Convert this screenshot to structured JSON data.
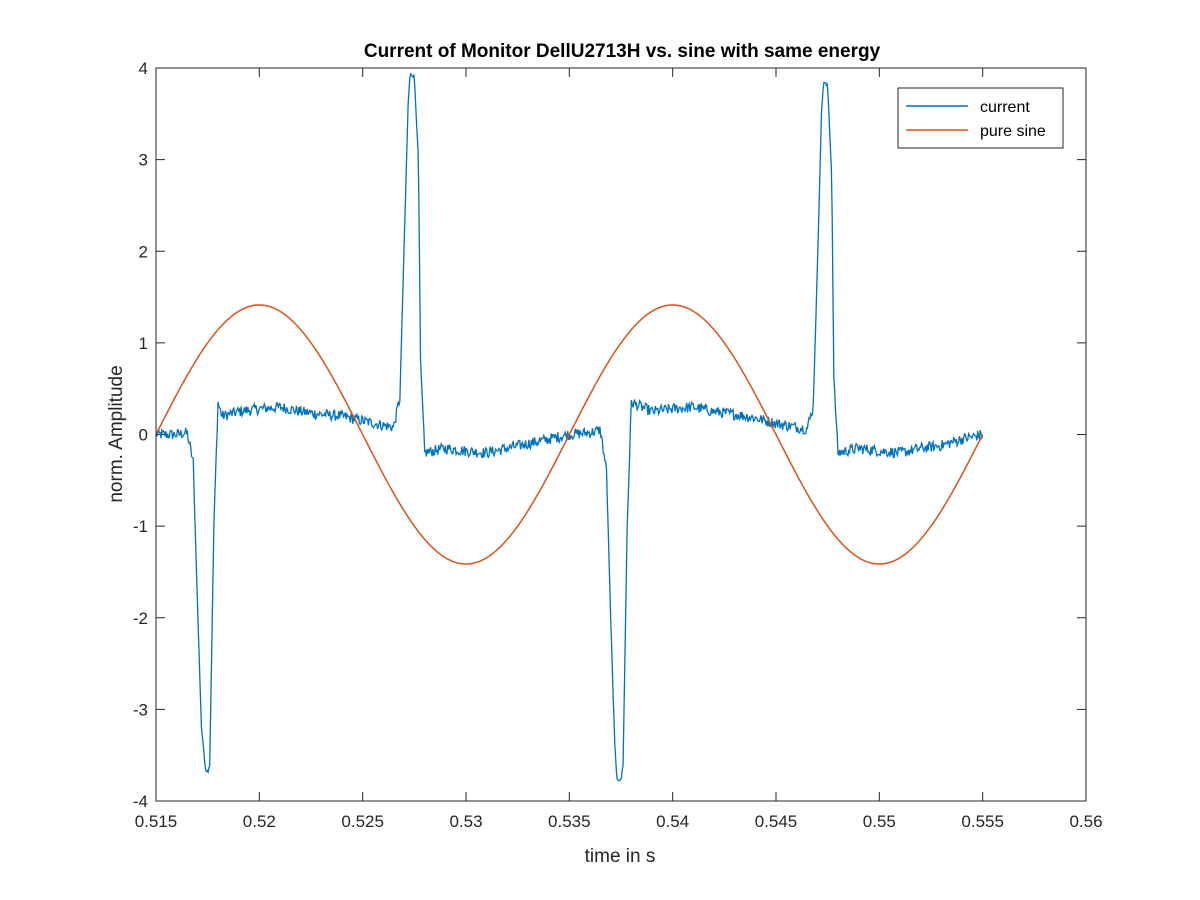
{
  "chart_data": {
    "type": "line",
    "title": "Current of Monitor DellU2713H vs. sine with same energy",
    "xlabel": "time in s",
    "ylabel": "norm. Amplitude",
    "xlim": [
      0.515,
      0.56
    ],
    "ylim": [
      -4,
      4
    ],
    "x_ticks": [
      "0.515",
      "0.52",
      "0.525",
      "0.53",
      "0.535",
      "0.54",
      "0.545",
      "0.55",
      "0.555",
      "0.56"
    ],
    "x_tick_values": [
      0.515,
      0.52,
      0.525,
      0.53,
      0.535,
      0.54,
      0.545,
      0.55,
      0.555,
      0.56
    ],
    "y_ticks": [
      "-4",
      "-3",
      "-2",
      "-1",
      "0",
      "1",
      "2",
      "3",
      "4"
    ],
    "y_tick_values": [
      -4,
      -3,
      -2,
      -1,
      0,
      1,
      2,
      3,
      4
    ],
    "grid": false,
    "legend_position": "top-right",
    "series": [
      {
        "name": "current",
        "color": "#0072BD",
        "x": [
          0.515,
          0.5155,
          0.516,
          0.5165,
          0.5168,
          0.517,
          0.5172,
          0.5174,
          0.5175,
          0.5176,
          0.5178,
          0.518,
          0.5182,
          0.519,
          0.52,
          0.521,
          0.522,
          0.523,
          0.524,
          0.525,
          0.526,
          0.5265,
          0.5268,
          0.527,
          0.5272,
          0.5273,
          0.5275,
          0.5277,
          0.5278,
          0.528,
          0.529,
          0.53,
          0.531,
          0.532,
          0.533,
          0.534,
          0.535,
          0.536,
          0.5365,
          0.5368,
          0.537,
          0.5372,
          0.5373,
          0.5375,
          0.5376,
          0.5378,
          0.538,
          0.539,
          0.54,
          0.541,
          0.542,
          0.543,
          0.544,
          0.545,
          0.546,
          0.5465,
          0.5468,
          0.547,
          0.5472,
          0.5473,
          0.5475,
          0.5477,
          0.5478,
          0.548,
          0.549,
          0.55,
          0.551,
          0.552,
          0.553,
          0.554,
          0.555
        ],
        "y": [
          0.0,
          0.0,
          0.0,
          0.02,
          -0.3,
          -1.8,
          -3.2,
          -3.65,
          -3.68,
          -3.6,
          -1.0,
          0.35,
          0.2,
          0.25,
          0.28,
          0.3,
          0.25,
          0.22,
          0.2,
          0.15,
          0.1,
          0.08,
          0.4,
          2.0,
          3.6,
          3.95,
          3.9,
          3.0,
          0.8,
          -0.2,
          -0.15,
          -0.18,
          -0.2,
          -0.15,
          -0.1,
          -0.05,
          0.0,
          0.02,
          0.05,
          -0.4,
          -2.0,
          -3.4,
          -3.75,
          -3.78,
          -3.6,
          -1.0,
          0.35,
          0.25,
          0.28,
          0.3,
          0.25,
          0.22,
          0.18,
          0.12,
          0.08,
          0.06,
          0.3,
          1.8,
          3.5,
          3.85,
          3.8,
          2.8,
          0.6,
          -0.2,
          -0.15,
          -0.18,
          -0.2,
          -0.15,
          -0.12,
          -0.05,
          0.0
        ]
      },
      {
        "name": "pure sine",
        "color": "#D95319",
        "function": "1.414*sin(2*pi*50*(t-0.515))",
        "amplitude": 1.414,
        "frequency_hz": 50,
        "x_start": 0.515,
        "x_end": 0.555
      }
    ]
  }
}
